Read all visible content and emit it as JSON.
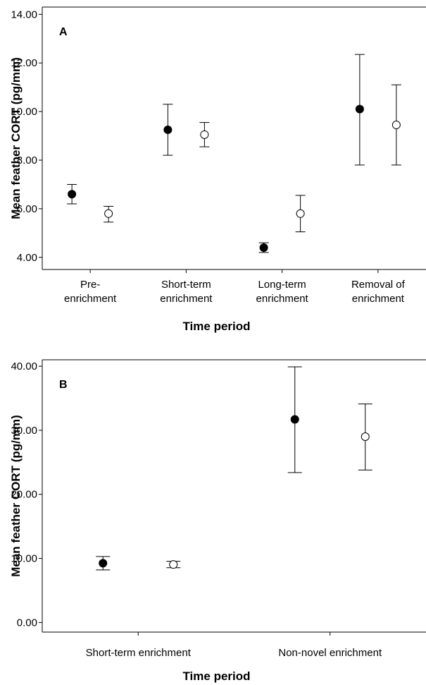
{
  "chart_data": [
    {
      "type": "scatter",
      "panel_label": "A",
      "xlabel": "Time period",
      "ylabel": "Mean feather CORT (pg/mm)",
      "ylim": [
        3.5,
        14.3
      ],
      "yticks": [
        "4.00",
        "6.00",
        "8.00",
        "10.00",
        "12.00",
        "14.00"
      ],
      "ytick_values": [
        4,
        6,
        8,
        10,
        12,
        14
      ],
      "categories": [
        [
          "Pre-",
          "enrichment"
        ],
        [
          "Short-term",
          "enrichment"
        ],
        [
          "Long-term",
          "enrichment"
        ],
        [
          "Removal of",
          "enrichment"
        ]
      ],
      "series": [
        {
          "marker": "filled",
          "values": [
            6.6,
            9.25,
            4.4,
            10.1
          ],
          "lower": [
            6.2,
            8.2,
            4.2,
            7.8
          ],
          "upper": [
            7.0,
            10.3,
            4.6,
            12.35
          ]
        },
        {
          "marker": "open",
          "values": [
            5.8,
            9.05,
            5.8,
            9.45
          ],
          "lower": [
            5.45,
            8.55,
            5.05,
            7.8
          ],
          "upper": [
            6.1,
            9.55,
            6.55,
            11.1
          ]
        }
      ],
      "grid": false
    },
    {
      "type": "scatter",
      "panel_label": "B",
      "xlabel": "Time period",
      "ylabel": "Mean feather CORT (pg/mm)",
      "ylim": [
        -1.5,
        41.0
      ],
      "yticks": [
        "0.00",
        "10.00",
        "20.00",
        "30.00",
        "40.00"
      ],
      "ytick_values": [
        0,
        10,
        20,
        30,
        40
      ],
      "categories": [
        [
          "Short-term enrichment"
        ],
        [
          "Non-novel enrichment"
        ]
      ],
      "series": [
        {
          "marker": "filled",
          "values": [
            9.25,
            31.7
          ],
          "lower": [
            8.2,
            23.4
          ],
          "upper": [
            10.3,
            39.9
          ]
        },
        {
          "marker": "open",
          "values": [
            9.05,
            29.0
          ],
          "lower": [
            8.55,
            23.8
          ],
          "upper": [
            9.55,
            34.1
          ]
        }
      ],
      "grid": false
    }
  ]
}
